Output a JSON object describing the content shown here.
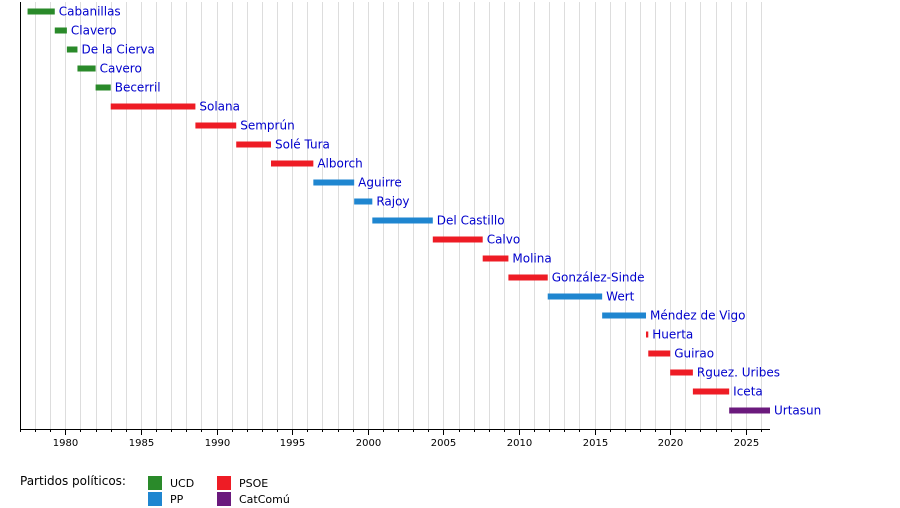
{
  "chart_data": {
    "type": "gantt",
    "xlim": [
      1977.0,
      2026.6
    ],
    "ticks": [
      1980,
      1985,
      1990,
      1995,
      2000,
      2005,
      2010,
      2015,
      2020,
      2025
    ],
    "grid": true,
    "parties": {
      "UCD": "#2a8a2a",
      "PP": "#1f86d0",
      "PSOE": "#ee1c25",
      "CatComú": "#6b1a7d"
    },
    "ministers": [
      {
        "name": "Cabanillas",
        "party": "UCD",
        "start": 1977.5,
        "end": 1979.3
      },
      {
        "name": "Clavero",
        "party": "UCD",
        "start": 1979.3,
        "end": 1980.1
      },
      {
        "name": "De la Cierva",
        "party": "UCD",
        "start": 1980.1,
        "end": 1980.8
      },
      {
        "name": "Cavero",
        "party": "UCD",
        "start": 1980.8,
        "end": 1982.0
      },
      {
        "name": "Becerril",
        "party": "UCD",
        "start": 1982.0,
        "end": 1983.0
      },
      {
        "name": "Solana",
        "party": "PSOE",
        "start": 1983.0,
        "end": 1988.6
      },
      {
        "name": "Semprún",
        "party": "PSOE",
        "start": 1988.6,
        "end": 1991.3
      },
      {
        "name": "Solé Tura",
        "party": "PSOE",
        "start": 1991.3,
        "end": 1993.6
      },
      {
        "name": "Alborch",
        "party": "PSOE",
        "start": 1993.6,
        "end": 1996.4
      },
      {
        "name": "Aguirre",
        "party": "PP",
        "start": 1996.4,
        "end": 1999.1
      },
      {
        "name": "Rajoy",
        "party": "PP",
        "start": 1999.1,
        "end": 2000.3
      },
      {
        "name": "Del Castillo",
        "party": "PP",
        "start": 2000.3,
        "end": 2004.3
      },
      {
        "name": "Calvo",
        "party": "PSOE",
        "start": 2004.3,
        "end": 2007.6
      },
      {
        "name": "Molina",
        "party": "PSOE",
        "start": 2007.6,
        "end": 2009.3
      },
      {
        "name": "González-Sinde",
        "party": "PSOE",
        "start": 2009.3,
        "end": 2011.9
      },
      {
        "name": "Wert",
        "party": "PP",
        "start": 2011.9,
        "end": 2015.5
      },
      {
        "name": "Méndez de Vigo",
        "party": "PP",
        "start": 2015.5,
        "end": 2018.4
      },
      {
        "name": "Huerta",
        "party": "PSOE",
        "start": 2018.4,
        "end": 2018.55
      },
      {
        "name": "Guirao",
        "party": "PSOE",
        "start": 2018.55,
        "end": 2020.0
      },
      {
        "name": "Rguez. Uribes",
        "party": "PSOE",
        "start": 2020.0,
        "end": 2021.5
      },
      {
        "name": "Iceta",
        "party": "PSOE",
        "start": 2021.5,
        "end": 2023.9
      },
      {
        "name": "Urtasun",
        "party": "CatComú",
        "start": 2023.9,
        "end": 2026.6
      }
    ]
  },
  "legend": {
    "title": "Partidos políticos:",
    "items": [
      {
        "label": "UCD",
        "party": "UCD"
      },
      {
        "label": "PP",
        "party": "PP"
      },
      {
        "label": "PSOE",
        "party": "PSOE"
      },
      {
        "label": "CatComú",
        "party": "CatComú"
      }
    ]
  }
}
